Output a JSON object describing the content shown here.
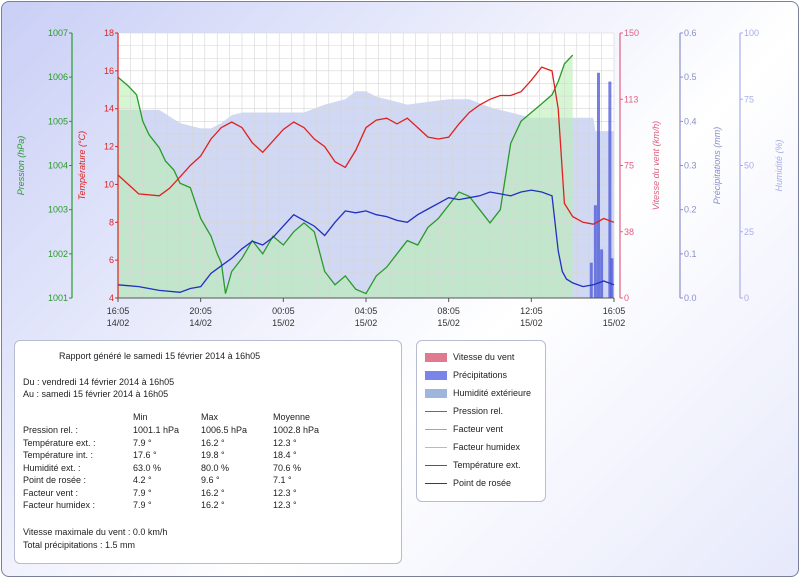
{
  "report": {
    "title": "Rapport généré le samedi 15 février 2014 à 16h05",
    "from": "Du : vendredi 14 février 2014 à 16h05",
    "to": "Au : samedi 15 février 2014 à 16h05",
    "headers": [
      "Min",
      "Max",
      "Moyenne"
    ],
    "rows": [
      {
        "label": "Pression rel. :",
        "min": "1001.1 hPa",
        "max": "1006.5 hPa",
        "avg": "1002.8 hPa"
      },
      {
        "label": "Température ext. :",
        "min": "7.9 °",
        "max": "16.2 °",
        "avg": "12.3 °"
      },
      {
        "label": "Température int. :",
        "min": "17.6 °",
        "max": "19.8 °",
        "avg": "18.4 °"
      },
      {
        "label": "Humidité ext. :",
        "min": "63.0 %",
        "max": "80.0 %",
        "avg": "70.6 %"
      },
      {
        "label": "Point de rosée :",
        "min": "4.2 °",
        "max": "9.6 °",
        "avg": "7.1 °"
      },
      {
        "label": "Facteur vent :",
        "min": "7.9 °",
        "max": "16.2 °",
        "avg": "12.3 °"
      },
      {
        "label": "Facteur humidex :",
        "min": "7.9 °",
        "max": "16.2 °",
        "avg": "12.3 °"
      }
    ],
    "max_wind": "Vitesse maximale du vent : 0.0 km/h",
    "total_rain": "Total précipitations : 1.5 mm"
  },
  "legend": [
    {
      "label": "Vitesse du vent",
      "kind": "box",
      "color": "#e07a90"
    },
    {
      "label": "Précipitations",
      "kind": "box",
      "color": "#7b84e8"
    },
    {
      "label": "Humidité extérieure",
      "kind": "box",
      "color": "#9fb6dc"
    },
    {
      "label": "Pression rel.",
      "kind": "line",
      "color": "#2a9a2a"
    },
    {
      "label": "Facteur vent",
      "kind": "line",
      "color": "#9aa0e8"
    },
    {
      "label": "Facteur humidex",
      "kind": "line",
      "color": "#f0a0b0"
    },
    {
      "label": "Température ext.",
      "kind": "line",
      "color": "#e02020"
    },
    {
      "label": "Point de rosée",
      "kind": "line",
      "color": "#2030c0"
    }
  ],
  "chart_data": {
    "type": "line",
    "colors": {
      "pressure": "#2a9a2a",
      "temperature": "#e02020",
      "wind": "#e06080",
      "rain": "#4a56d8",
      "rain_axis": "#8a8ec8",
      "humidity": "#a8aee8",
      "dewpoint": "#2030c0"
    },
    "x_ticks": [
      [
        "16:05",
        "14/02"
      ],
      [
        "20:05",
        "14/02"
      ],
      [
        "00:05",
        "15/02"
      ],
      [
        "04:05",
        "15/02"
      ],
      [
        "08:05",
        "15/02"
      ],
      [
        "12:05",
        "15/02"
      ],
      [
        "16:05",
        "15/02"
      ]
    ],
    "x_range_hours": [
      0,
      24
    ],
    "axes": [
      {
        "name": "pressure",
        "label": "Pression (hPa)",
        "min": 1001,
        "max": 1007,
        "ticks": [
          "1001",
          "1002",
          "1003",
          "1004",
          "1005",
          "1006",
          "1007"
        ]
      },
      {
        "name": "temperature",
        "label": "Température (°C)",
        "min": 4,
        "max": 18,
        "ticks": [
          "4",
          "6",
          "8",
          "10",
          "12",
          "14",
          "16",
          "18"
        ]
      },
      {
        "name": "wind",
        "label": "Vitesse du vent (km/h)",
        "min": 0,
        "max": 150,
        "ticks": [
          "0",
          "38",
          "75",
          "113",
          "150"
        ]
      },
      {
        "name": "rain",
        "label": "Précipitations (mm)",
        "min": 0,
        "max": 0.6,
        "ticks": [
          "0.0",
          "0.1",
          "0.2",
          "0.3",
          "0.4",
          "0.5",
          "0.6"
        ]
      },
      {
        "name": "humidity",
        "label": "Humidité (%)",
        "min": 0,
        "max": 100,
        "ticks": [
          "0",
          "25",
          "50",
          "75",
          "100"
        ]
      }
    ],
    "humidity": [
      [
        0,
        71
      ],
      [
        0.5,
        71
      ],
      [
        1,
        71
      ],
      [
        2,
        71
      ],
      [
        3,
        66
      ],
      [
        4,
        64
      ],
      [
        4.5,
        64
      ],
      [
        5,
        66
      ],
      [
        5.5,
        69
      ],
      [
        6,
        70
      ],
      [
        7,
        70
      ],
      [
        8,
        70
      ],
      [
        9,
        70
      ],
      [
        10,
        73
      ],
      [
        11,
        75
      ],
      [
        11.5,
        78
      ],
      [
        12,
        78
      ],
      [
        12.5,
        76
      ],
      [
        13,
        75
      ],
      [
        13.5,
        74
      ],
      [
        14,
        73
      ],
      [
        15,
        74
      ],
      [
        16,
        75
      ],
      [
        17,
        75
      ],
      [
        18,
        72
      ],
      [
        19,
        70
      ],
      [
        20,
        68
      ],
      [
        21,
        68
      ],
      [
        22,
        68
      ],
      [
        23,
        68
      ],
      [
        23.1,
        63
      ],
      [
        23.7,
        63
      ],
      [
        24,
        63
      ]
    ],
    "rain": [
      [
        22.9,
        0.08
      ],
      [
        23.1,
        0.21
      ],
      [
        23.25,
        0.51
      ],
      [
        23.4,
        0.11
      ],
      [
        23.8,
        0.49
      ],
      [
        23.9,
        0.09
      ]
    ],
    "pressure": [
      [
        0,
        1006.0
      ],
      [
        0.5,
        1005.8
      ],
      [
        0.9,
        1005.6
      ],
      [
        1.2,
        1005.0
      ],
      [
        1.5,
        1004.7
      ],
      [
        2,
        1004.4
      ],
      [
        2.3,
        1004.1
      ],
      [
        2.7,
        1003.9
      ],
      [
        3,
        1003.6
      ],
      [
        3.5,
        1003.5
      ],
      [
        4,
        1002.8
      ],
      [
        4.5,
        1002.4
      ],
      [
        4.8,
        1002.0
      ],
      [
        5,
        1001.8
      ],
      [
        5.2,
        1001.1
      ],
      [
        5.5,
        1001.6
      ],
      [
        6,
        1001.9
      ],
      [
        6.5,
        1002.3
      ],
      [
        7,
        1002.0
      ],
      [
        7.5,
        1002.4
      ],
      [
        8,
        1002.2
      ],
      [
        8.5,
        1002.5
      ],
      [
        9,
        1002.7
      ],
      [
        9.5,
        1002.5
      ],
      [
        10,
        1001.6
      ],
      [
        10.5,
        1001.3
      ],
      [
        11,
        1001.5
      ],
      [
        11.5,
        1001.2
      ],
      [
        12,
        1001.1
      ],
      [
        12.5,
        1001.5
      ],
      [
        13,
        1001.7
      ],
      [
        13.5,
        1002.0
      ],
      [
        14,
        1002.3
      ],
      [
        14.5,
        1002.2
      ],
      [
        15,
        1002.6
      ],
      [
        15.5,
        1002.8
      ],
      [
        16,
        1003.1
      ],
      [
        16.5,
        1003.4
      ],
      [
        17,
        1003.3
      ],
      [
        17.5,
        1003.0
      ],
      [
        18,
        1002.7
      ],
      [
        18.5,
        1003.0
      ],
      [
        19,
        1004.5
      ],
      [
        19.5,
        1005.0
      ],
      [
        20,
        1005.2
      ],
      [
        20.5,
        1005.4
      ],
      [
        21,
        1005.6
      ],
      [
        21.3,
        1005.9
      ],
      [
        21.6,
        1006.3
      ],
      [
        22,
        1006.5
      ]
    ],
    "temperature": [
      [
        0,
        10.5
      ],
      [
        0.5,
        10.0
      ],
      [
        1,
        9.5
      ],
      [
        2,
        9.4
      ],
      [
        2.5,
        9.8
      ],
      [
        3,
        10.4
      ],
      [
        3.5,
        11.0
      ],
      [
        4,
        11.5
      ],
      [
        4.5,
        12.4
      ],
      [
        5,
        13.0
      ],
      [
        5.5,
        13.3
      ],
      [
        6,
        13.0
      ],
      [
        6.5,
        12.2
      ],
      [
        7,
        11.7
      ],
      [
        7.5,
        12.3
      ],
      [
        8,
        12.9
      ],
      [
        8.5,
        13.3
      ],
      [
        9,
        13.0
      ],
      [
        9.5,
        12.4
      ],
      [
        10,
        12.0
      ],
      [
        10.5,
        11.2
      ],
      [
        11,
        10.9
      ],
      [
        11.5,
        11.8
      ],
      [
        12,
        13.0
      ],
      [
        12.5,
        13.4
      ],
      [
        13,
        13.5
      ],
      [
        13.5,
        13.2
      ],
      [
        14,
        13.5
      ],
      [
        14.5,
        13.0
      ],
      [
        15,
        12.5
      ],
      [
        15.5,
        12.4
      ],
      [
        16,
        12.5
      ],
      [
        16.5,
        13.2
      ],
      [
        17,
        13.8
      ],
      [
        17.5,
        14.2
      ],
      [
        18,
        14.5
      ],
      [
        18.5,
        14.7
      ],
      [
        19,
        14.7
      ],
      [
        19.5,
        14.9
      ],
      [
        20,
        15.5
      ],
      [
        20.5,
        16.2
      ],
      [
        21,
        16.0
      ],
      [
        21.3,
        14.0
      ],
      [
        21.6,
        9.0
      ],
      [
        22,
        8.3
      ],
      [
        22.5,
        8.0
      ],
      [
        23,
        7.9
      ],
      [
        23.5,
        8.2
      ],
      [
        24,
        8.0
      ]
    ],
    "dewpoint": [
      [
        0,
        4.7
      ],
      [
        1,
        4.6
      ],
      [
        2,
        4.4
      ],
      [
        3,
        4.3
      ],
      [
        3.5,
        4.5
      ],
      [
        4,
        4.6
      ],
      [
        4.5,
        5.3
      ],
      [
        5,
        5.7
      ],
      [
        5.5,
        6.1
      ],
      [
        6,
        6.6
      ],
      [
        6.5,
        7.0
      ],
      [
        7,
        6.8
      ],
      [
        7.5,
        7.2
      ],
      [
        8,
        7.8
      ],
      [
        8.5,
        8.4
      ],
      [
        9,
        8.1
      ],
      [
        9.5,
        7.8
      ],
      [
        10,
        7.3
      ],
      [
        10.5,
        8.0
      ],
      [
        11,
        8.6
      ],
      [
        11.5,
        8.5
      ],
      [
        12,
        8.6
      ],
      [
        12.5,
        8.4
      ],
      [
        13,
        8.3
      ],
      [
        13.5,
        8.1
      ],
      [
        14,
        8.0
      ],
      [
        14.5,
        8.4
      ],
      [
        15,
        8.7
      ],
      [
        15.5,
        9.0
      ],
      [
        16,
        9.3
      ],
      [
        16.5,
        9.2
      ],
      [
        17,
        9.3
      ],
      [
        17.5,
        9.4
      ],
      [
        18,
        9.6
      ],
      [
        18.5,
        9.5
      ],
      [
        19,
        9.4
      ],
      [
        19.5,
        9.6
      ],
      [
        20,
        9.7
      ],
      [
        20.5,
        9.6
      ],
      [
        21,
        9.4
      ],
      [
        21.3,
        6.5
      ],
      [
        21.5,
        5.4
      ],
      [
        21.7,
        5.0
      ],
      [
        22,
        4.8
      ],
      [
        22.5,
        4.6
      ],
      [
        23,
        4.7
      ],
      [
        23.5,
        4.9
      ],
      [
        24,
        4.7
      ]
    ]
  }
}
